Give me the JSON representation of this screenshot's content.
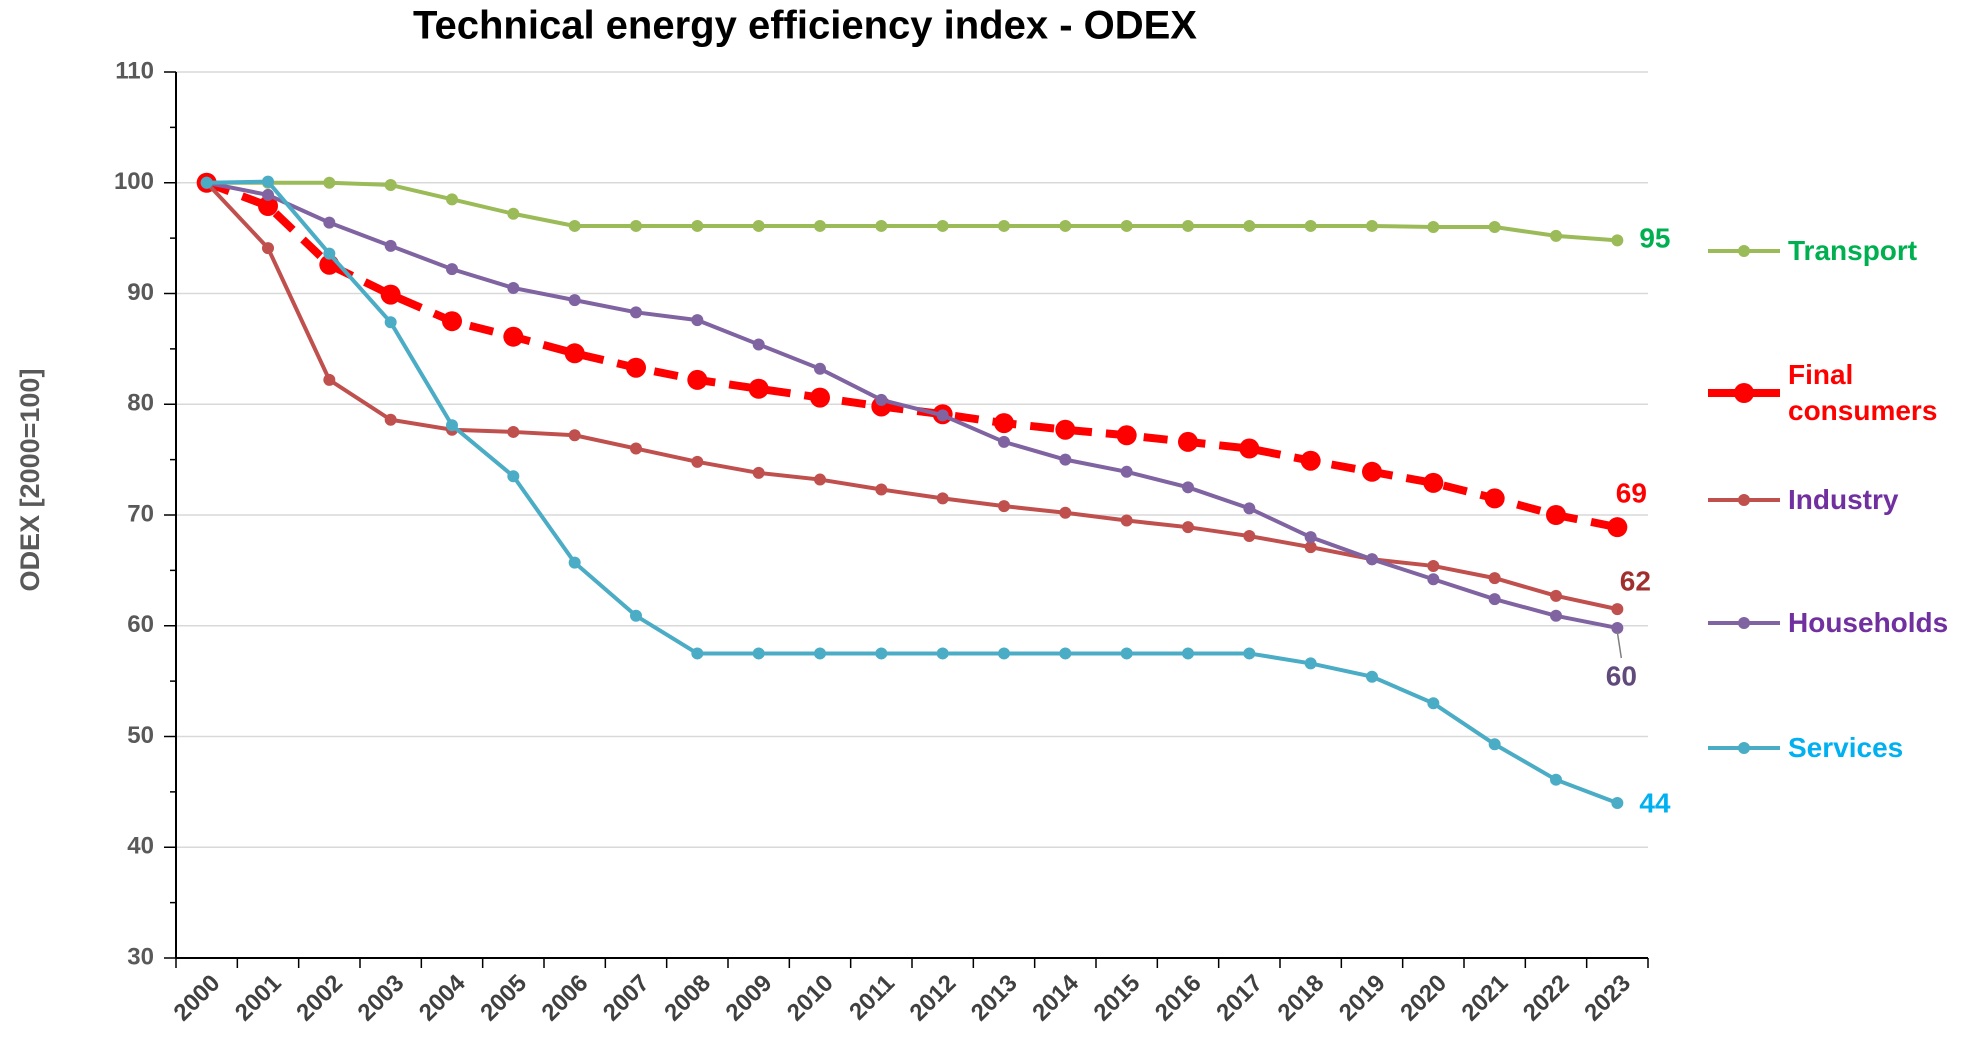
{
  "chart_data": {
    "type": "line",
    "title": "Technical energy efficiency index - ODEX",
    "y_label": "ODEX [2000=100]",
    "categories": [
      "2000",
      "2001",
      "2002",
      "2003",
      "2004",
      "2005",
      "2006",
      "2007",
      "2008",
      "2009",
      "2010",
      "2011",
      "2012",
      "2013",
      "2014",
      "2015",
      "2016",
      "2017",
      "2018",
      "2019",
      "2020",
      "2021",
      "2022",
      "2023"
    ],
    "ylim": [
      30,
      110
    ],
    "yticks": [
      30,
      40,
      50,
      60,
      70,
      80,
      90,
      100,
      110
    ],
    "yticks_minor": [
      35,
      45,
      55,
      65,
      75,
      85,
      95,
      105
    ],
    "grid": true,
    "legend": "right",
    "series": [
      {
        "name": "Transport",
        "color": "#9bbb59",
        "label_color": "#00b050",
        "values": [
          100,
          100,
          100,
          99.8,
          98.5,
          97.2,
          96.1,
          96.1,
          96.1,
          96.1,
          96.1,
          96.1,
          96.1,
          96.1,
          96.1,
          96.1,
          96.1,
          96.1,
          96.1,
          96.1,
          96,
          96,
          95.2,
          94.8
        ],
        "value_labels": [
          null,
          null,
          null,
          null,
          null,
          null,
          null,
          null,
          null,
          null,
          null,
          null,
          null,
          null,
          null,
          null,
          null,
          null,
          null,
          null,
          null,
          null,
          null,
          "95"
        ]
      },
      {
        "name": "Final consumers",
        "color": "#ff0000",
        "label_color": "#ff0000",
        "dashed": true,
        "values": [
          100,
          97.9,
          92.6,
          89.9,
          87.5,
          86.1,
          84.6,
          83.3,
          82.2,
          81.4,
          80.6,
          79.8,
          79.1,
          78.3,
          77.7,
          77.2,
          76.6,
          76,
          74.9,
          73.9,
          72.9,
          71.5,
          70,
          68.9
        ],
        "value_labels": [
          null,
          null,
          null,
          null,
          null,
          null,
          null,
          null,
          null,
          null,
          null,
          null,
          null,
          null,
          null,
          null,
          null,
          null,
          null,
          null,
          null,
          null,
          null,
          "69"
        ]
      },
      {
        "name": "Industry",
        "color": "#c0504d",
        "label_color": "#7030a0",
        "values": [
          100,
          94.1,
          82.2,
          78.6,
          77.7,
          77.5,
          77.2,
          76,
          74.8,
          73.8,
          73.2,
          72.3,
          71.5,
          70.8,
          70.2,
          69.5,
          68.9,
          68.1,
          67.1,
          66,
          65.4,
          64.3,
          62.7,
          61.5
        ],
        "value_labels": [
          null,
          null,
          null,
          null,
          null,
          null,
          null,
          null,
          null,
          null,
          null,
          null,
          null,
          null,
          null,
          null,
          null,
          null,
          null,
          null,
          null,
          null,
          null,
          "62"
        ]
      },
      {
        "name": "Households",
        "color": "#8064a2",
        "label_color": "#7030a0",
        "values": [
          100,
          98.9,
          96.4,
          94.3,
          92.2,
          90.5,
          89.4,
          88.3,
          87.6,
          85.4,
          83.2,
          80.4,
          79,
          76.6,
          75,
          73.9,
          72.5,
          70.6,
          68,
          66,
          64.2,
          62.4,
          60.9,
          59.8
        ],
        "value_labels": [
          null,
          null,
          null,
          null,
          null,
          null,
          null,
          null,
          null,
          null,
          null,
          null,
          null,
          null,
          null,
          null,
          null,
          null,
          null,
          null,
          null,
          null,
          null,
          "60"
        ]
      },
      {
        "name": "Services",
        "color": "#4bacc6",
        "label_color": "#00b0f0",
        "values": [
          100,
          100.1,
          93.6,
          87.4,
          78.1,
          73.5,
          65.7,
          60.9,
          57.5,
          57.5,
          57.5,
          57.5,
          57.5,
          57.5,
          57.5,
          57.5,
          57.5,
          57.5,
          56.6,
          55.4,
          53,
          49.3,
          46.1,
          44
        ],
        "value_labels": [
          null,
          null,
          null,
          null,
          null,
          null,
          null,
          null,
          null,
          null,
          null,
          null,
          null,
          null,
          null,
          null,
          null,
          null,
          null,
          null,
          null,
          null,
          null,
          "44"
        ]
      }
    ]
  }
}
